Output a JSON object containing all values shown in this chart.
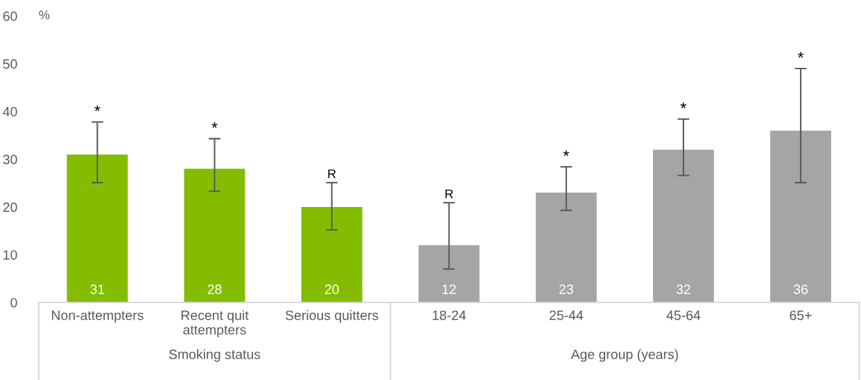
{
  "chart_data": {
    "type": "bar",
    "categories": [
      "Non-attempters",
      "Recent quit attempters",
      "Serious quitters",
      "18-24",
      "25-44",
      "45-64",
      "65+"
    ],
    "values": [
      31,
      28,
      20,
      12,
      23,
      32,
      36
    ],
    "colors": [
      "#84bd00",
      "#84bd00",
      "#84bd00",
      "#a5a5a5",
      "#a5a5a5",
      "#a5a5a5",
      "#a5a5a5"
    ],
    "errors": [
      [
        25.1,
        37.8
      ],
      [
        23.3,
        34.3
      ],
      [
        15.2,
        25.1
      ],
      [
        7.0,
        20.9
      ],
      [
        19.3,
        28.4
      ],
      [
        26.6,
        38.4
      ],
      [
        25.1,
        49.0
      ]
    ],
    "ylabel": "%",
    "ylim": [
      0,
      60
    ],
    "yticks": [
      0,
      10,
      20,
      30,
      40,
      50,
      60
    ],
    "data_labels": true,
    "grid": false,
    "annotations": [
      {
        "text": "*",
        "x": "Non-attempters",
        "y": 37.8
      },
      {
        "text": "*",
        "x": "Recent quit attempters",
        "y": 34.3
      },
      {
        "text": "R",
        "x": "Serious quitters",
        "y": 25.1
      },
      {
        "text": "R",
        "x": "18-24",
        "y": 20.9
      },
      {
        "text": "*",
        "x": "25-44",
        "y": 28.4
      },
      {
        "text": "*",
        "x": "45-64",
        "y": 38.4
      },
      {
        "text": "*",
        "x": "65+",
        "y": 49.0
      },
      "Smoking status",
      "Age group (years)"
    ]
  }
}
